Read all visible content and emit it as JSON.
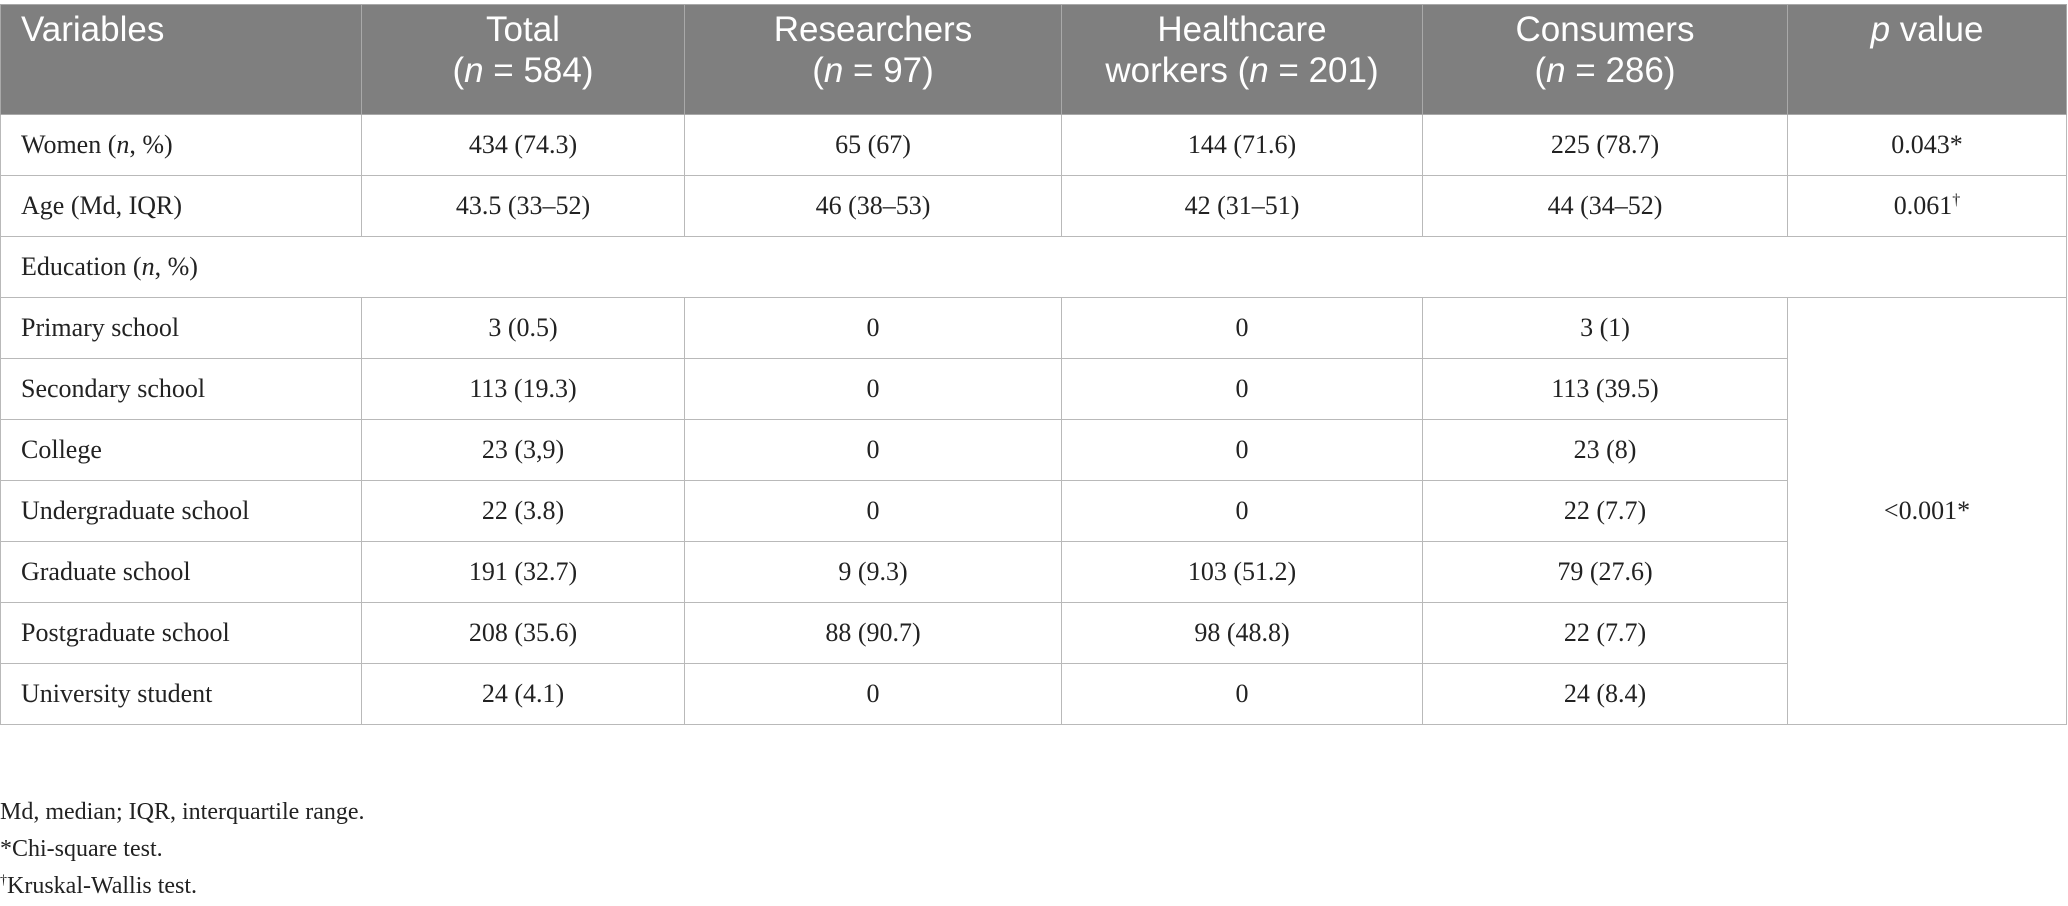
{
  "table": {
    "headers": [
      {
        "main": "Variables"
      },
      {
        "main": "Total",
        "n_prefix": "(",
        "n_var": "n",
        "n_rest": " = 584)"
      },
      {
        "main": "Researchers",
        "n_prefix": "(",
        "n_var": "n",
        "n_rest": " = 97)"
      },
      {
        "main": "Healthcare",
        "n_prefix": "workers (",
        "n_var": "n",
        "n_rest": " = 201)"
      },
      {
        "main": "Consumers",
        "n_prefix": "(",
        "n_var": "n",
        "n_rest": " = 286)"
      },
      {
        "main_var": "p",
        "main_rest": " value"
      }
    ],
    "rows": [
      {
        "label_pre": "Women (",
        "label_var": "n",
        "label_post": ", %)",
        "total": "434 (74.3)",
        "researchers": "65 (67)",
        "healthcare": "144 (71.6)",
        "consumers": "225 (78.7)",
        "p": "0.043*"
      },
      {
        "label": "Age (Md, IQR)",
        "total": "43.5 (33–52)",
        "researchers": "46 (38–53)",
        "healthcare": "42 (31–51)",
        "consumers": "44 (34–52)",
        "p": "0.061",
        "p_sup": "†"
      },
      {
        "label_pre": "Education (",
        "label_var": "n",
        "label_post": ", %)"
      }
    ],
    "education_rows": [
      {
        "label": "Primary school",
        "total": "3 (0.5)",
        "researchers": "0",
        "healthcare": "0",
        "consumers": "3 (1)"
      },
      {
        "label": "Secondary school",
        "total": "113 (19.3)",
        "researchers": "0",
        "healthcare": "0",
        "consumers": "113 (39.5)"
      },
      {
        "label": "College",
        "total": "23 (3,9)",
        "researchers": "0",
        "healthcare": "0",
        "consumers": "23 (8)"
      },
      {
        "label": "Undergraduate school",
        "total": "22 (3.8)",
        "researchers": "0",
        "healthcare": "0",
        "consumers": "22 (7.7)"
      },
      {
        "label": "Graduate school",
        "total": "191 (32.7)",
        "researchers": "9 (9.3)",
        "healthcare": "103 (51.2)",
        "consumers": "79 (27.6)"
      },
      {
        "label": "Postgraduate school",
        "total": "208 (35.6)",
        "researchers": "88 (90.7)",
        "healthcare": "98 (48.8)",
        "consumers": "22 (7.7)"
      },
      {
        "label": "University student",
        "total": "24 (4.1)",
        "researchers": "0",
        "healthcare": "0",
        "consumers": "24 (8.4)"
      }
    ],
    "education_p": "<0.001*"
  },
  "notes": {
    "abbreviations": "Md, median; IQR, interquartile range.",
    "star_note": "*Chi-square test.",
    "dagger_symbol": "†",
    "dagger_note": "Kruskal-Wallis test."
  },
  "colors": {
    "header_bg": "#7f7f7f",
    "header_text": "#ffffff",
    "grid": "#b9b9b9"
  }
}
